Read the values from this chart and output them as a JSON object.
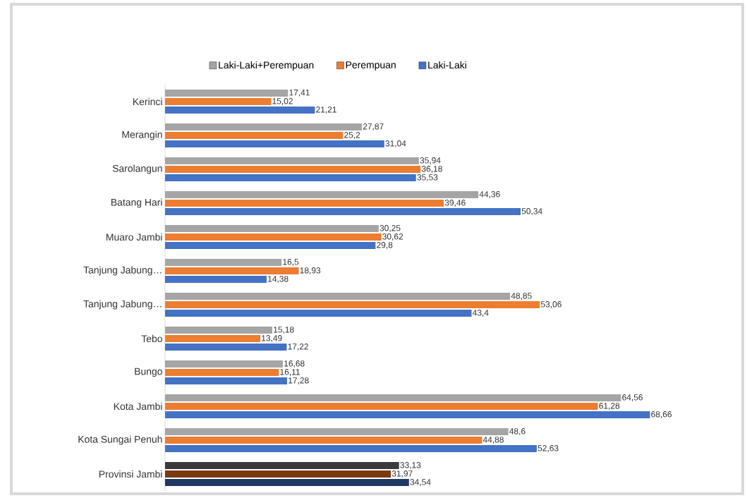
{
  "chart_data": {
    "type": "bar",
    "orientation": "horizontal",
    "categories": [
      "Kerinci",
      "Merangin",
      "Sarolangun",
      "Batang Hari",
      "Muaro Jambi",
      "Tanjung Jabung…",
      "Tanjung Jabung…",
      "Tebo",
      "Bungo",
      "Kota Jambi",
      "Kota Sungai Penuh",
      "Provinsi Jambi"
    ],
    "series": [
      {
        "name": "Laki-Laki+Perempuan",
        "color": "#a5a5a5",
        "colors": [
          "#a5a5a5",
          "#a5a5a5",
          "#a5a5a5",
          "#a5a5a5",
          "#a5a5a5",
          "#a5a5a5",
          "#a5a5a5",
          "#a5a5a5",
          "#a5a5a5",
          "#a5a5a5",
          "#a5a5a5",
          "#3a3a3a"
        ],
        "values": [
          17.41,
          27.87,
          35.94,
          44.36,
          30.25,
          16.5,
          48.85,
          15.18,
          16.68,
          64.56,
          48.6,
          33.13
        ],
        "value_labels": [
          "17,41",
          "27,87",
          "35,94",
          "44,36",
          "30,25",
          "16,5",
          "48,85",
          "15,18",
          "16,68",
          "64,56",
          "48,6",
          "33,13"
        ]
      },
      {
        "name": "Perempuan",
        "color": "#ed7d31",
        "colors": [
          "#ed7d31",
          "#ed7d31",
          "#ed7d31",
          "#ed7d31",
          "#ed7d31",
          "#ed7d31",
          "#ed7d31",
          "#ed7d31",
          "#ed7d31",
          "#ed7d31",
          "#ed7d31",
          "#7a3a10"
        ],
        "values": [
          15.02,
          25.2,
          36.18,
          39.46,
          30.62,
          18.93,
          53.06,
          13.49,
          16.11,
          61.28,
          44.88,
          31.97
        ],
        "value_labels": [
          "15,02",
          "25,2",
          "36,18",
          "39,46",
          "30,62",
          "18,93",
          "53,06",
          "13,49",
          "16,11",
          "61,28",
          "44,88",
          "31,97"
        ]
      },
      {
        "name": "Laki-Laki",
        "color": "#4472c4",
        "colors": [
          "#4472c4",
          "#4472c4",
          "#4472c4",
          "#4472c4",
          "#4472c4",
          "#4472c4",
          "#4472c4",
          "#4472c4",
          "#4472c4",
          "#4472c4",
          "#4472c4",
          "#203864"
        ],
        "values": [
          21.21,
          31.04,
          35.53,
          50.34,
          29.8,
          14.38,
          43.4,
          17.22,
          17.28,
          68.66,
          52.63,
          34.54
        ],
        "value_labels": [
          "21,21",
          "31,04",
          "35,53",
          "50,34",
          "29,8",
          "14,38",
          "43,4",
          "17,22",
          "17,28",
          "68,66",
          "52,63",
          "34,54"
        ]
      }
    ],
    "xlim": [
      0,
      82
    ],
    "legend": "top",
    "tick_labels": "y"
  }
}
